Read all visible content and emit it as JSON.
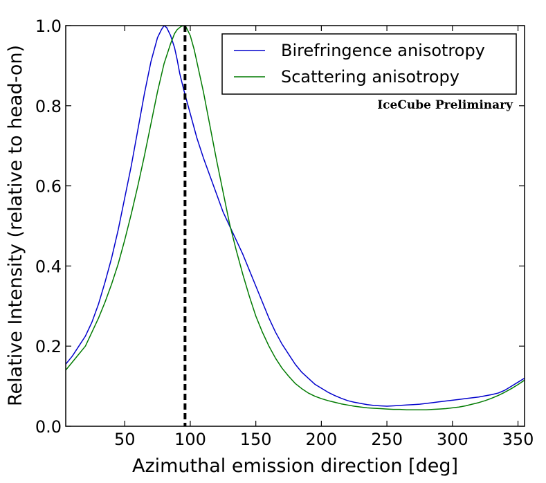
{
  "chart_data": {
    "type": "line",
    "title": "",
    "xlabel": "Azimuthal emission direction [deg]",
    "ylabel": "Relative Intensity (relative to head-on)",
    "xlim": [
      5,
      355
    ],
    "ylim": [
      0.0,
      1.0
    ],
    "xticks": [
      50,
      100,
      150,
      200,
      250,
      300,
      350
    ],
    "yticks": [
      0.0,
      0.2,
      0.4,
      0.6,
      0.8,
      1.0
    ],
    "xtick_labels": [
      "50",
      "100",
      "150",
      "200",
      "250",
      "300",
      "350"
    ],
    "ytick_labels": [
      "0.0",
      "0.2",
      "0.4",
      "0.6",
      "0.8",
      "1.0"
    ],
    "legend_position": "top-right",
    "annotation": "IceCube Preliminary",
    "vline": {
      "x": 96,
      "style": "dashed",
      "color": "#000000"
    },
    "series": [
      {
        "name": "Birefringence anisotropy",
        "color": "#0000cc",
        "x": [
          5,
          10,
          15,
          20,
          25,
          30,
          35,
          40,
          45,
          50,
          55,
          60,
          65,
          70,
          75,
          78,
          80,
          82,
          85,
          88,
          90,
          92,
          95,
          100,
          105,
          110,
          115,
          120,
          125,
          130,
          135,
          140,
          145,
          150,
          155,
          160,
          165,
          170,
          175,
          180,
          185,
          190,
          195,
          200,
          205,
          210,
          215,
          220,
          225,
          230,
          235,
          240,
          245,
          250,
          255,
          260,
          265,
          270,
          275,
          280,
          285,
          290,
          295,
          300,
          305,
          310,
          315,
          320,
          325,
          330,
          335,
          340,
          345,
          350,
          355
        ],
        "y": [
          0.155,
          0.175,
          0.2,
          0.225,
          0.26,
          0.305,
          0.36,
          0.42,
          0.49,
          0.57,
          0.65,
          0.74,
          0.83,
          0.91,
          0.97,
          0.99,
          1.0,
          0.995,
          0.975,
          0.945,
          0.915,
          0.88,
          0.84,
          0.78,
          0.72,
          0.67,
          0.625,
          0.58,
          0.535,
          0.5,
          0.465,
          0.43,
          0.39,
          0.35,
          0.31,
          0.27,
          0.235,
          0.205,
          0.18,
          0.155,
          0.135,
          0.12,
          0.105,
          0.095,
          0.085,
          0.077,
          0.07,
          0.064,
          0.06,
          0.057,
          0.054,
          0.052,
          0.051,
          0.05,
          0.051,
          0.052,
          0.053,
          0.054,
          0.055,
          0.057,
          0.059,
          0.061,
          0.063,
          0.065,
          0.067,
          0.069,
          0.071,
          0.073,
          0.076,
          0.079,
          0.083,
          0.09,
          0.1,
          0.11,
          0.12
        ]
      },
      {
        "name": "Scattering anisotropy",
        "color": "#007a00",
        "x": [
          5,
          10,
          15,
          20,
          25,
          30,
          35,
          40,
          45,
          50,
          55,
          60,
          65,
          70,
          75,
          80,
          85,
          88,
          90,
          93,
          95,
          97,
          100,
          103,
          105,
          110,
          115,
          120,
          125,
          130,
          135,
          140,
          145,
          150,
          155,
          160,
          165,
          170,
          175,
          180,
          185,
          190,
          195,
          200,
          205,
          210,
          215,
          220,
          225,
          230,
          235,
          240,
          245,
          250,
          255,
          260,
          265,
          270,
          275,
          280,
          285,
          290,
          295,
          300,
          305,
          310,
          315,
          320,
          325,
          330,
          335,
          340,
          345,
          350,
          355
        ],
        "y": [
          0.14,
          0.16,
          0.18,
          0.2,
          0.235,
          0.27,
          0.31,
          0.355,
          0.405,
          0.465,
          0.53,
          0.6,
          0.675,
          0.755,
          0.835,
          0.905,
          0.955,
          0.98,
          0.99,
          0.998,
          1.0,
          0.995,
          0.975,
          0.94,
          0.91,
          0.835,
          0.75,
          0.665,
          0.585,
          0.505,
          0.44,
          0.38,
          0.325,
          0.275,
          0.235,
          0.2,
          0.17,
          0.145,
          0.125,
          0.107,
          0.094,
          0.083,
          0.075,
          0.069,
          0.064,
          0.06,
          0.056,
          0.053,
          0.05,
          0.048,
          0.046,
          0.045,
          0.044,
          0.043,
          0.042,
          0.042,
          0.041,
          0.041,
          0.041,
          0.041,
          0.042,
          0.043,
          0.044,
          0.046,
          0.048,
          0.051,
          0.055,
          0.059,
          0.064,
          0.07,
          0.077,
          0.085,
          0.094,
          0.104,
          0.115
        ]
      }
    ]
  }
}
